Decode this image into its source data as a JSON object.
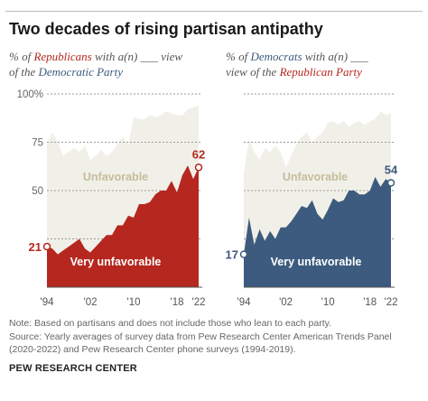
{
  "title": "Two decades of rising partisan antipathy",
  "left_subtitle": {
    "line1_pre": "% of ",
    "line1_party": "Republicans",
    "line1_post": " with a(n) ___ view",
    "line2_pre": "of the ",
    "line2_party": "Democratic Party"
  },
  "right_subtitle": {
    "line1_pre": "% of ",
    "line1_party": "Democrats",
    "line1_post": " with a(n) ___",
    "line2_pre": "view of the ",
    "line2_party": "Republican Party"
  },
  "note": "Note: Based on partisans and does not include those who lean to each party.",
  "source_line1": "Source: Yearly averages of survey data from Pew Research Center American Trends Panel",
  "source_line2": "(2020-2022) and Pew Research Center phone surveys (1994-2019).",
  "brand": "PEW RESEARCH CENTER",
  "colors": {
    "republican": "#b5271f",
    "democrat": "#3c5b7e",
    "unfavorable_fill": "#f1f0e8",
    "unfavorable_label": "#c4bd9c"
  },
  "chart_data": [
    {
      "type": "area",
      "panel": "republicans-view-of-democratic-party",
      "x": [
        1994,
        1995,
        1996,
        1997,
        1998,
        1999,
        2000,
        2001,
        2002,
        2003,
        2004,
        2005,
        2006,
        2007,
        2008,
        2009,
        2010,
        2011,
        2012,
        2013,
        2014,
        2015,
        2016,
        2017,
        2018,
        2019,
        2020,
        2021,
        2022
      ],
      "x_tick_labels": [
        "'94",
        "'02",
        "'10",
        "'18",
        "'22"
      ],
      "x_tick_values": [
        1994,
        2002,
        2010,
        2018,
        2022
      ],
      "ylim": [
        0,
        100
      ],
      "y_ticks": [
        25,
        50,
        75,
        100
      ],
      "y_tick_labels": [
        "",
        "50",
        "75",
        "100%"
      ],
      "series": [
        {
          "name": "Unfavorable",
          "values": [
            74,
            80,
            75,
            68,
            70,
            72,
            70,
            73,
            66,
            68,
            71,
            68,
            70,
            74,
            78,
            74,
            88,
            87,
            87,
            89,
            88,
            89,
            91,
            90,
            89,
            89,
            92,
            93,
            94
          ]
        },
        {
          "name": "Very unfavorable",
          "values": [
            21,
            20,
            17,
            19,
            21,
            23,
            25,
            20,
            18,
            21,
            24,
            27,
            27,
            32,
            32,
            37,
            36,
            43,
            43,
            44,
            48,
            50,
            50,
            55,
            49,
            58,
            63,
            56,
            62
          ]
        }
      ],
      "start_label": "21",
      "end_label": "62",
      "grid": true
    },
    {
      "type": "area",
      "panel": "democrats-view-of-republican-party",
      "x": [
        1994,
        1995,
        1996,
        1997,
        1998,
        1999,
        2000,
        2001,
        2002,
        2003,
        2004,
        2005,
        2006,
        2007,
        2008,
        2009,
        2010,
        2011,
        2012,
        2013,
        2014,
        2015,
        2016,
        2017,
        2018,
        2019,
        2020,
        2021,
        2022
      ],
      "x_tick_labels": [
        "'94",
        "'02",
        "'10",
        "'18",
        "'22"
      ],
      "x_tick_values": [
        1994,
        2002,
        2010,
        2018,
        2022
      ],
      "ylim": [
        0,
        100
      ],
      "y_ticks": [
        25,
        50,
        75,
        100
      ],
      "series": [
        {
          "name": "Unfavorable",
          "values": [
            59,
            77,
            70,
            66,
            72,
            70,
            73,
            70,
            62,
            68,
            74,
            78,
            80,
            75,
            78,
            80,
            85,
            86,
            84,
            86,
            83,
            85,
            86,
            84,
            86,
            87,
            91,
            89,
            90
          ]
        },
        {
          "name": "Very unfavorable",
          "values": [
            17,
            36,
            22,
            30,
            24,
            29,
            25,
            31,
            31,
            34,
            38,
            42,
            41,
            45,
            38,
            35,
            40,
            46,
            44,
            45,
            50,
            50,
            48,
            48,
            50,
            57,
            52,
            56,
            54
          ]
        }
      ],
      "start_label": "17",
      "end_label": "54",
      "grid": true
    }
  ]
}
